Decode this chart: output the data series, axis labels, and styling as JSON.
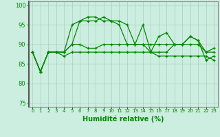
{
  "xlabel": "Humidité relative (%)",
  "xlim": [
    -0.5,
    23.5
  ],
  "ylim": [
    74,
    101
  ],
  "yticks": [
    75,
    80,
    85,
    90,
    95,
    100
  ],
  "bg_color": "#cceee0",
  "grid_color": "#aaccbb",
  "line_color": "#008800",
  "lines": [
    [
      88,
      83,
      88,
      88,
      88,
      95,
      96,
      96,
      96,
      97,
      96,
      96,
      95,
      90,
      95,
      88,
      92,
      93,
      90,
      90,
      92,
      91,
      88,
      89
    ],
    [
      88,
      83,
      88,
      88,
      88,
      90,
      96,
      97,
      97,
      96,
      96,
      95,
      90,
      90,
      90,
      88,
      88,
      88,
      90,
      90,
      92,
      91,
      86,
      87
    ],
    [
      88,
      83,
      88,
      88,
      88,
      90,
      90,
      89,
      89,
      90,
      90,
      90,
      90,
      90,
      90,
      90,
      90,
      90,
      90,
      90,
      90,
      90,
      88,
      88
    ],
    [
      88,
      83,
      88,
      88,
      87,
      88,
      88,
      88,
      88,
      88,
      88,
      88,
      88,
      88,
      88,
      88,
      87,
      87,
      87,
      87,
      87,
      87,
      87,
      86
    ]
  ]
}
